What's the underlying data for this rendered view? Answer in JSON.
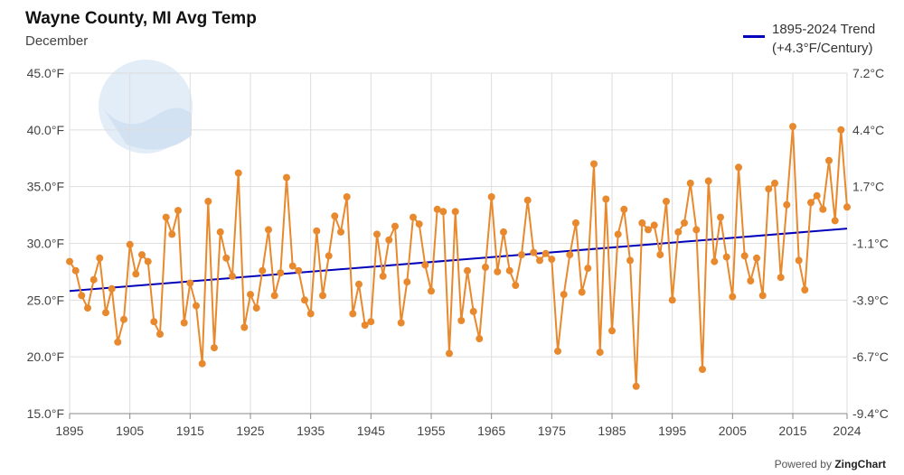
{
  "chart_data": {
    "type": "line",
    "title": "Wayne County, MI Avg Temp",
    "subtitle": "December",
    "xlabel": "",
    "ylabel": "",
    "xlim": [
      1895,
      2024
    ],
    "ylim": [
      15,
      45
    ],
    "y_ticks_left": [
      {
        "value": 45,
        "label": "45.0°F"
      },
      {
        "value": 40,
        "label": "40.0°F"
      },
      {
        "value": 35,
        "label": "35.0°F"
      },
      {
        "value": 30,
        "label": "30.0°F"
      },
      {
        "value": 25,
        "label": "25.0°F"
      },
      {
        "value": 20,
        "label": "20.0°F"
      },
      {
        "value": 15,
        "label": "15.0°F"
      }
    ],
    "y_ticks_right": [
      {
        "value": 45,
        "label": "7.2°C"
      },
      {
        "value": 40,
        "label": "4.4°C"
      },
      {
        "value": 35,
        "label": "1.7°C"
      },
      {
        "value": 30,
        "label": "-1.1°C"
      },
      {
        "value": 25,
        "label": "-3.9°C"
      },
      {
        "value": 20,
        "label": "-6.7°C"
      },
      {
        "value": 15,
        "label": "-9.4°C"
      }
    ],
    "x_ticks": [
      {
        "value": 1895,
        "label": "1895"
      },
      {
        "value": 1905,
        "label": "1905"
      },
      {
        "value": 1915,
        "label": "1915"
      },
      {
        "value": 1925,
        "label": "1925"
      },
      {
        "value": 1935,
        "label": "1935"
      },
      {
        "value": 1945,
        "label": "1945"
      },
      {
        "value": 1955,
        "label": "1955"
      },
      {
        "value": 1965,
        "label": "1965"
      },
      {
        "value": 1975,
        "label": "1975"
      },
      {
        "value": 1985,
        "label": "1985"
      },
      {
        "value": 1995,
        "label": "1995"
      },
      {
        "value": 2005,
        "label": "2005"
      },
      {
        "value": 2015,
        "label": "2015"
      },
      {
        "value": 2024,
        "label": "2024"
      }
    ],
    "grid": true,
    "legend_position": "top-right",
    "series": [
      {
        "name": "",
        "color": "#e8892e",
        "x_start": 1895,
        "values": [
          28.4,
          27.6,
          25.4,
          24.3,
          26.8,
          28.7,
          23.9,
          26.0,
          21.3,
          23.3,
          29.9,
          27.3,
          29.0,
          28.4,
          23.1,
          22.0,
          32.3,
          30.8,
          32.9,
          23.0,
          26.5,
          24.5,
          19.4,
          33.7,
          20.8,
          31.0,
          28.7,
          27.1,
          36.2,
          22.6,
          25.5,
          24.3,
          27.6,
          31.2,
          25.4,
          27.4,
          35.8,
          28.0,
          27.6,
          25.0,
          23.8,
          31.1,
          25.4,
          28.9,
          32.4,
          31.0,
          34.1,
          23.8,
          26.4,
          22.8,
          23.1,
          30.8,
          27.1,
          30.3,
          31.5,
          23.0,
          26.6,
          32.3,
          31.7,
          28.1,
          25.8,
          33.0,
          32.8,
          20.3,
          32.8,
          23.2,
          27.6,
          24.0,
          21.6,
          27.9,
          34.1,
          27.5,
          31.0,
          27.6,
          26.3,
          29.0,
          33.8,
          29.2,
          28.5,
          29.1,
          28.6,
          20.5,
          25.5,
          29.0,
          31.8,
          25.7,
          27.8,
          37.0,
          20.4,
          33.9,
          22.3,
          30.8,
          33.0,
          28.5,
          17.4,
          31.8,
          31.2,
          31.6,
          29.0,
          33.7,
          25.0,
          31.0,
          31.8,
          35.3,
          31.2,
          18.9,
          35.5,
          28.4,
          32.3,
          28.8,
          25.3,
          36.7,
          28.9,
          26.7,
          28.7,
          25.4,
          34.8,
          35.3,
          27.0,
          33.4,
          40.3,
          28.5,
          25.9,
          33.6,
          34.2,
          33.0,
          37.3,
          32.0,
          40.0,
          33.2
        ]
      },
      {
        "name": "1895-2024 Trend",
        "name_line2": "(+4.3°F/Century)",
        "color": "#0000bb",
        "x": [
          1895,
          2024
        ],
        "values": [
          25.8,
          31.3
        ]
      }
    ]
  },
  "credit": {
    "prefix": "Powered by",
    "brand": "ZingChart"
  }
}
